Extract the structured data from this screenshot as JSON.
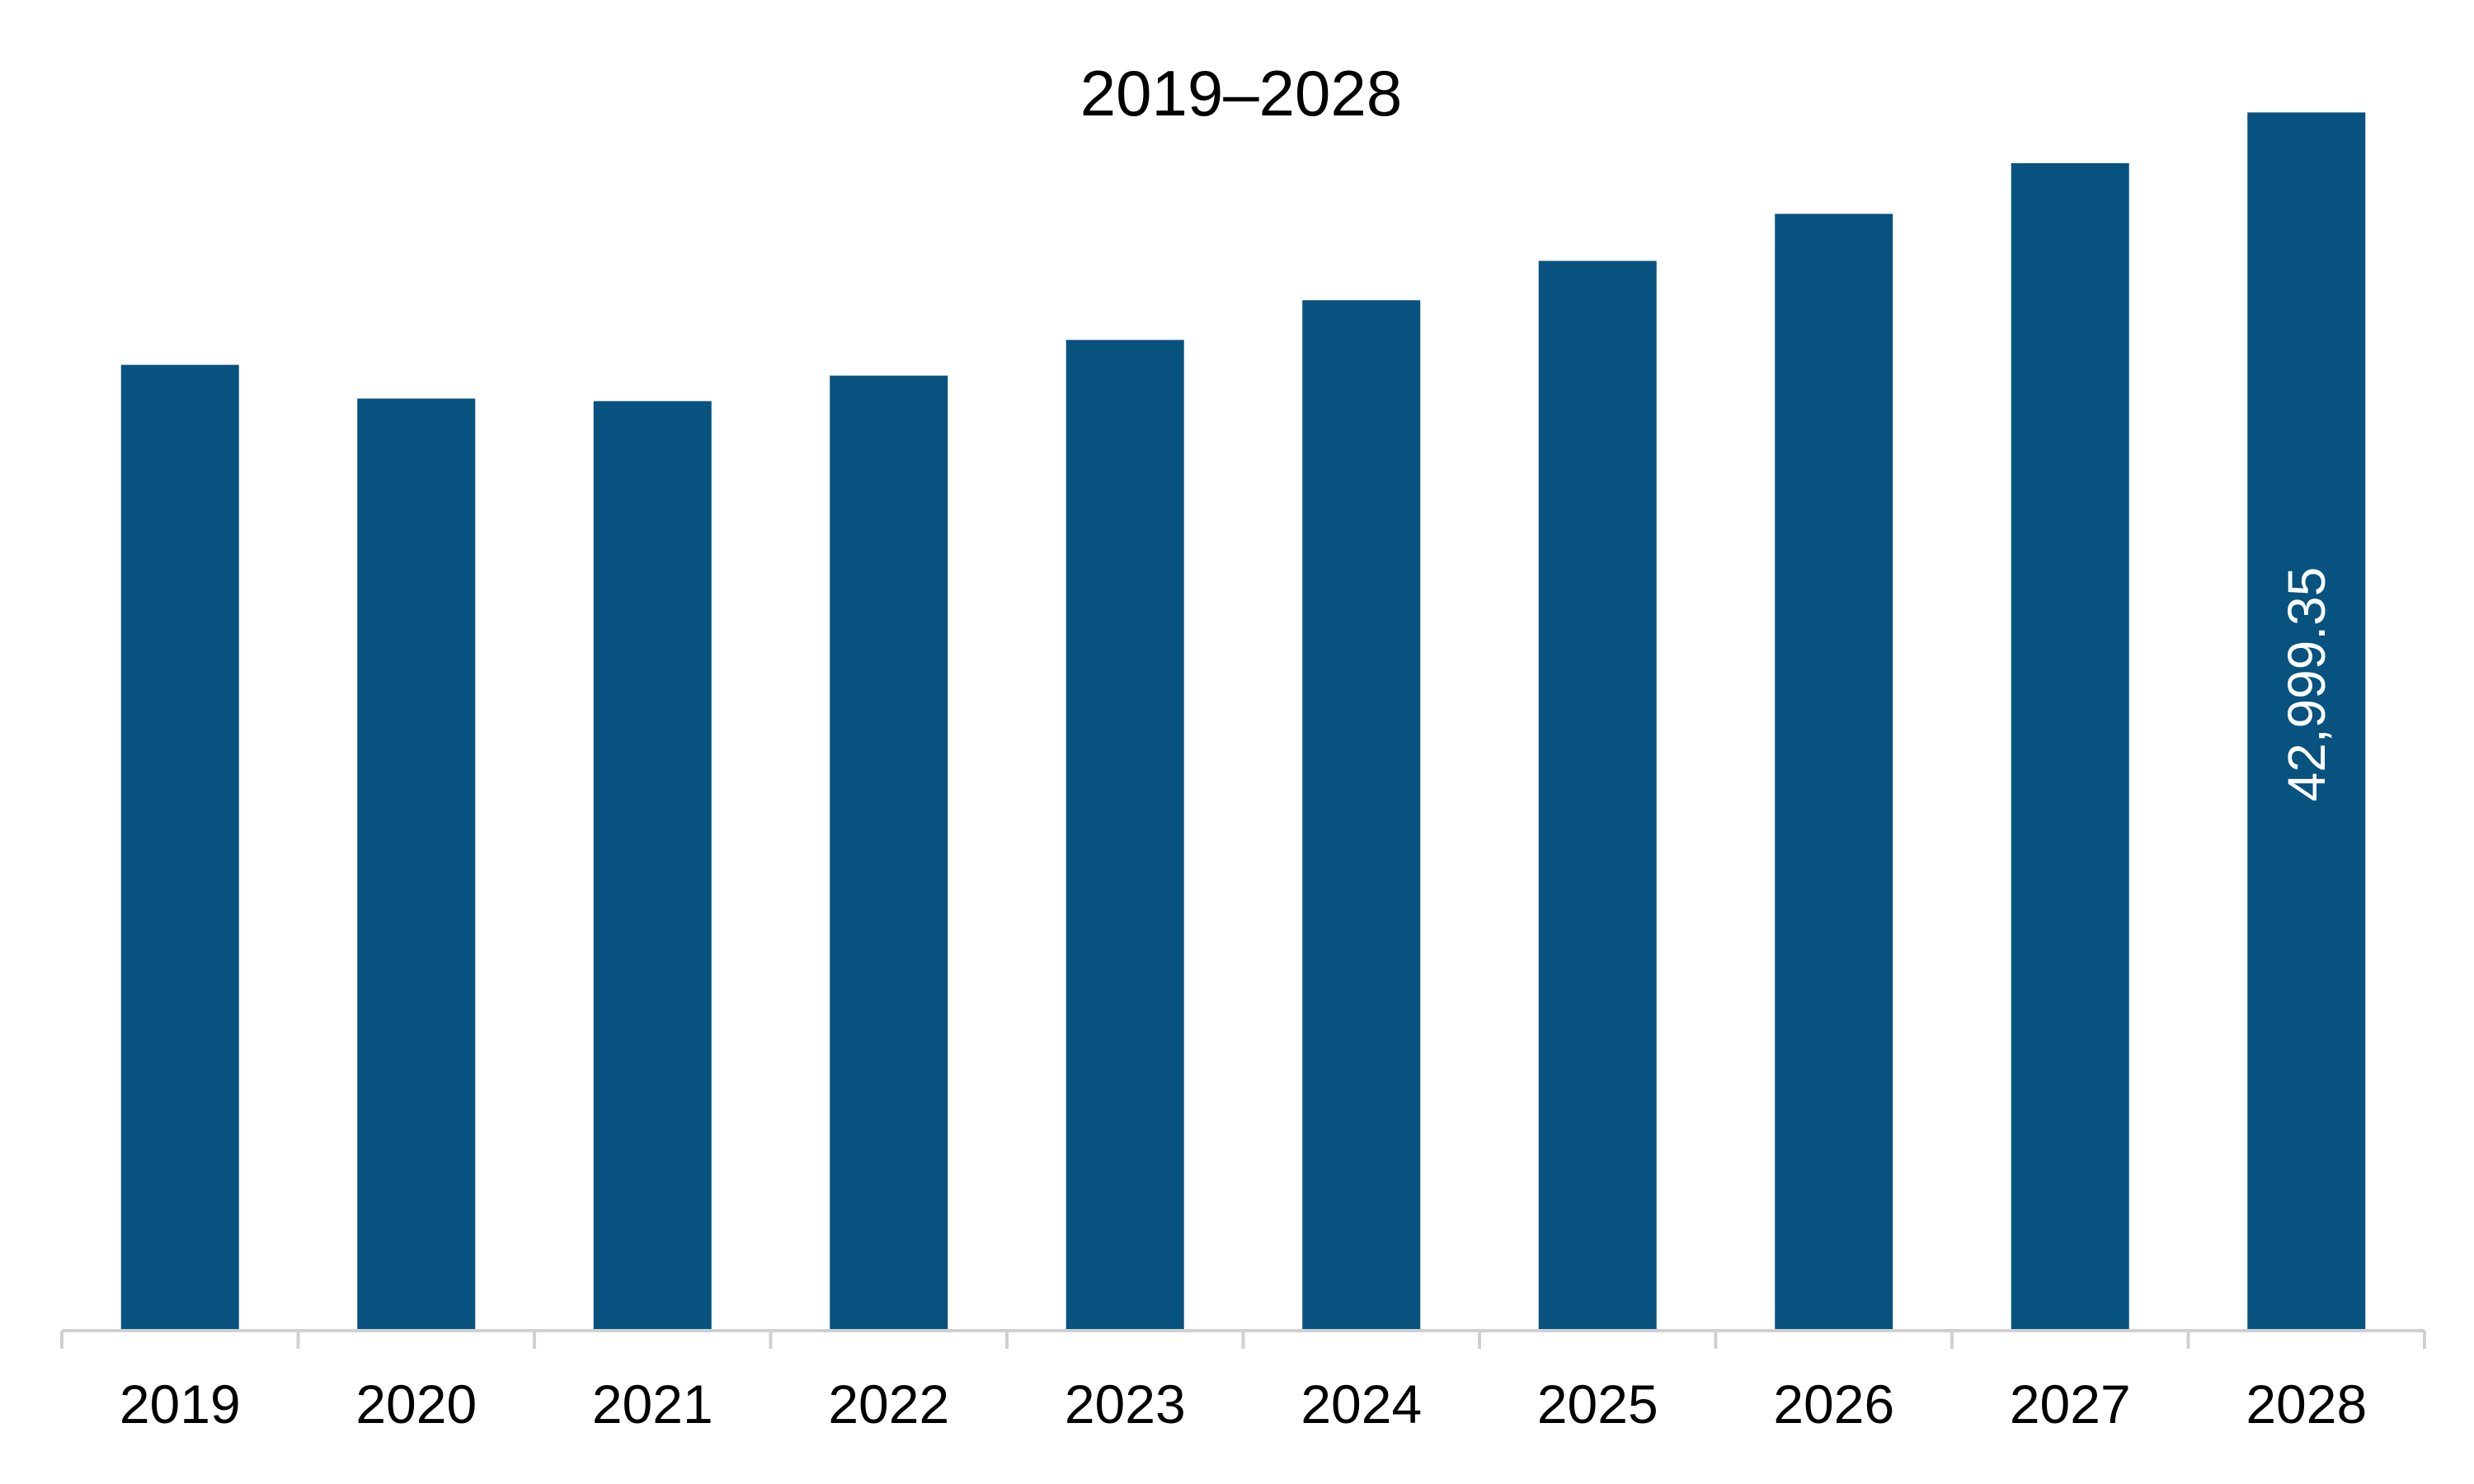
{
  "chart_data": {
    "type": "bar",
    "title": "2019–2028",
    "xlabel": "",
    "ylabel": "",
    "categories": [
      "2019",
      "2020",
      "2021",
      "2022",
      "2023",
      "2024",
      "2025",
      "2026",
      "2027",
      "2028"
    ],
    "values": [
      34090,
      32900,
      32810,
      33710,
      34970,
      36370,
      37760,
      39420,
      41210,
      42999.35
    ],
    "data_labels": [
      "",
      "",
      "",
      "",
      "",
      "",
      "",
      "",
      "",
      "42,999.35"
    ],
    "ylim": [
      0,
      44000
    ],
    "bar_color": "#08527f",
    "axis_color": "#d0d0d0",
    "grid": false,
    "legend": "none"
  }
}
